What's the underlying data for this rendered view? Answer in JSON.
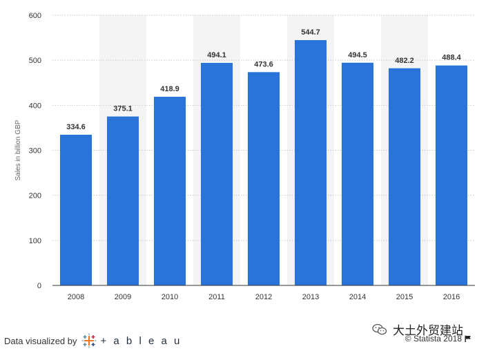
{
  "chart_data": {
    "type": "bar",
    "categories": [
      "2008",
      "2009",
      "2010",
      "2011",
      "2012",
      "2013",
      "2014",
      "2015",
      "2016"
    ],
    "values": [
      334.6,
      375.1,
      418.9,
      494.1,
      473.6,
      544.7,
      494.5,
      482.2,
      488.4
    ],
    "value_labels": [
      "334.6",
      "375.1",
      "418.9",
      "494.1",
      "473.6",
      "544.7",
      "494.5",
      "482.2",
      "488.4"
    ],
    "ylabel": "Sales in billion GBP",
    "xlabel": "",
    "ylim": [
      0,
      600
    ],
    "yticks": [
      0,
      100,
      200,
      300,
      400,
      500,
      600
    ],
    "grid": true,
    "bar_color": "#2a74d9",
    "band_color": "#f4f4f4"
  },
  "footer": {
    "visualized_by": "Data visualized by",
    "tableau_word": "+ a b l e a u",
    "credit": "© Statista 2018",
    "watermark": "大土外贸建站"
  },
  "icons": {
    "tableau_logo": "tableau-cross-logo-icon",
    "wechat": "wechat-icon",
    "flag": "flag-icon"
  }
}
